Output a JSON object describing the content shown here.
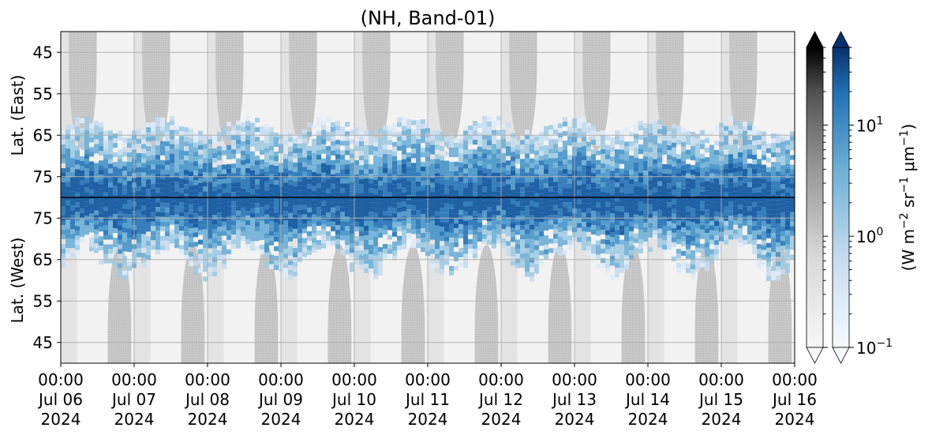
{
  "chart_data": {
    "type": "heatmap",
    "title": "(NH, Band-01)",
    "xlabel": "",
    "x_ticks": [
      {
        "time": "00:00",
        "date": "Jul 06",
        "year": "2024"
      },
      {
        "time": "00:00",
        "date": "Jul 07",
        "year": "2024"
      },
      {
        "time": "00:00",
        "date": "Jul 08",
        "year": "2024"
      },
      {
        "time": "00:00",
        "date": "Jul 09",
        "year": "2024"
      },
      {
        "time": "00:00",
        "date": "Jul 10",
        "year": "2024"
      },
      {
        "time": "00:00",
        "date": "Jul 11",
        "year": "2024"
      },
      {
        "time": "00:00",
        "date": "Jul 12",
        "year": "2024"
      },
      {
        "time": "00:00",
        "date": "Jul 13",
        "year": "2024"
      },
      {
        "time": "00:00",
        "date": "Jul 14",
        "year": "2024"
      },
      {
        "time": "00:00",
        "date": "Jul 15",
        "year": "2024"
      },
      {
        "time": "00:00",
        "date": "Jul 16",
        "year": "2024"
      }
    ],
    "xlim": [
      "2024-07-06T00:00",
      "2024-07-16T00:00"
    ],
    "y_panels": [
      {
        "label": "Lat. (East)",
        "ticks": [
          "45",
          "55",
          "65",
          "75"
        ]
      },
      {
        "label": "Lat. (West)",
        "ticks": [
          "75",
          "65",
          "55",
          "45"
        ]
      }
    ],
    "colorbar": {
      "label_base": "(W m",
      "label_exp1": "−2",
      "label_mid": " sr",
      "label_exp2": "−1",
      "label_mu": " μm",
      "label_exp3": "−1",
      "label_end": ")",
      "scale": "log",
      "range": [
        0.1,
        50
      ],
      "ticks": [
        {
          "value": 0.1,
          "base": "10",
          "exp": "−1"
        },
        {
          "value": 1,
          "base": "10",
          "exp": "0"
        },
        {
          "value": 10,
          "base": "10",
          "exp": "1"
        }
      ],
      "cmaps": [
        "Greys",
        "Blues"
      ],
      "extend": "both"
    },
    "grid": true,
    "colors": {
      "nodata_gray": "#c4c4c4",
      "gray_min": "#f7f7f7",
      "gray_max": "#000000",
      "blue_min": "#f7fbff",
      "blue_max": "#08306b",
      "divider_line": "#000000"
    }
  }
}
